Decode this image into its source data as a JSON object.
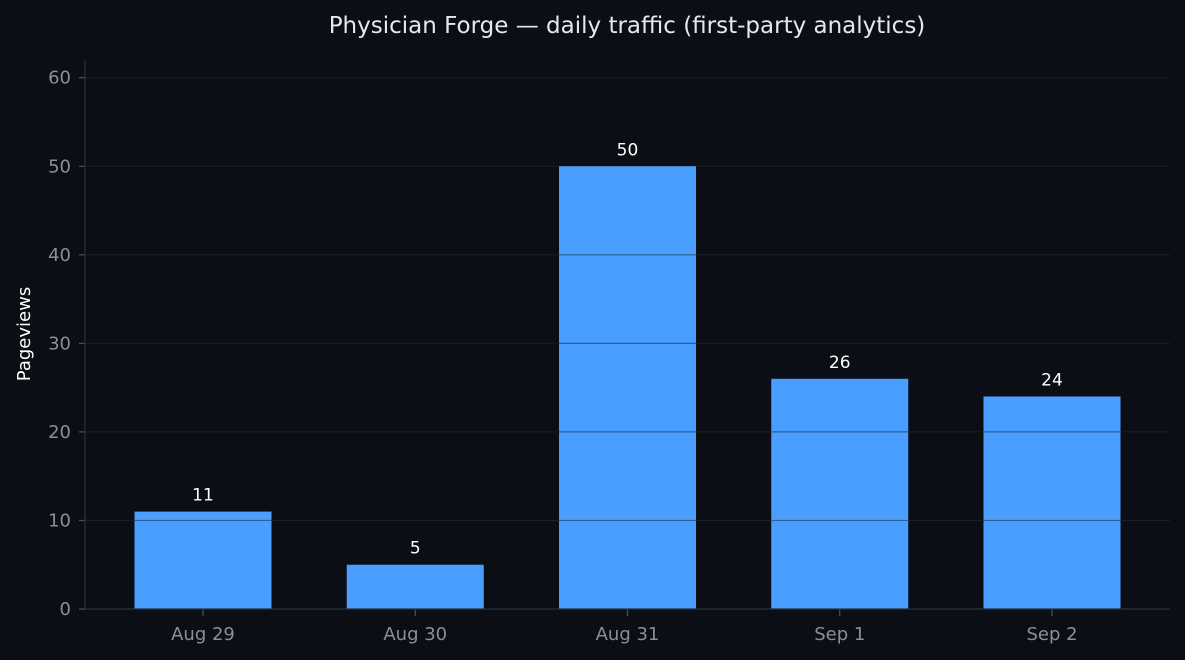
{
  "chart_data": {
    "type": "bar",
    "title": "Physician Forge — daily traffic (first-party analytics)",
    "xlabel": "",
    "ylabel": "Pageviews",
    "categories": [
      "Aug 29",
      "Aug 30",
      "Aug 31",
      "Sep 1",
      "Sep 2"
    ],
    "values": [
      11,
      5,
      50,
      26,
      24
    ],
    "data_labels": [
      "11",
      "5",
      "50",
      "26",
      "24"
    ],
    "ylim": [
      0,
      62
    ],
    "yticks": [
      0,
      10,
      20,
      30,
      40,
      50,
      60
    ],
    "ytick_labels": [
      "0",
      "10",
      "20",
      "30",
      "40",
      "50",
      "60"
    ],
    "grid": "horizontal",
    "legend": "none",
    "colors": {
      "bar": "#4a9eff",
      "background": "#0b0e14",
      "text": "#e6e8eb",
      "tick_text": "#8a8f98"
    }
  }
}
